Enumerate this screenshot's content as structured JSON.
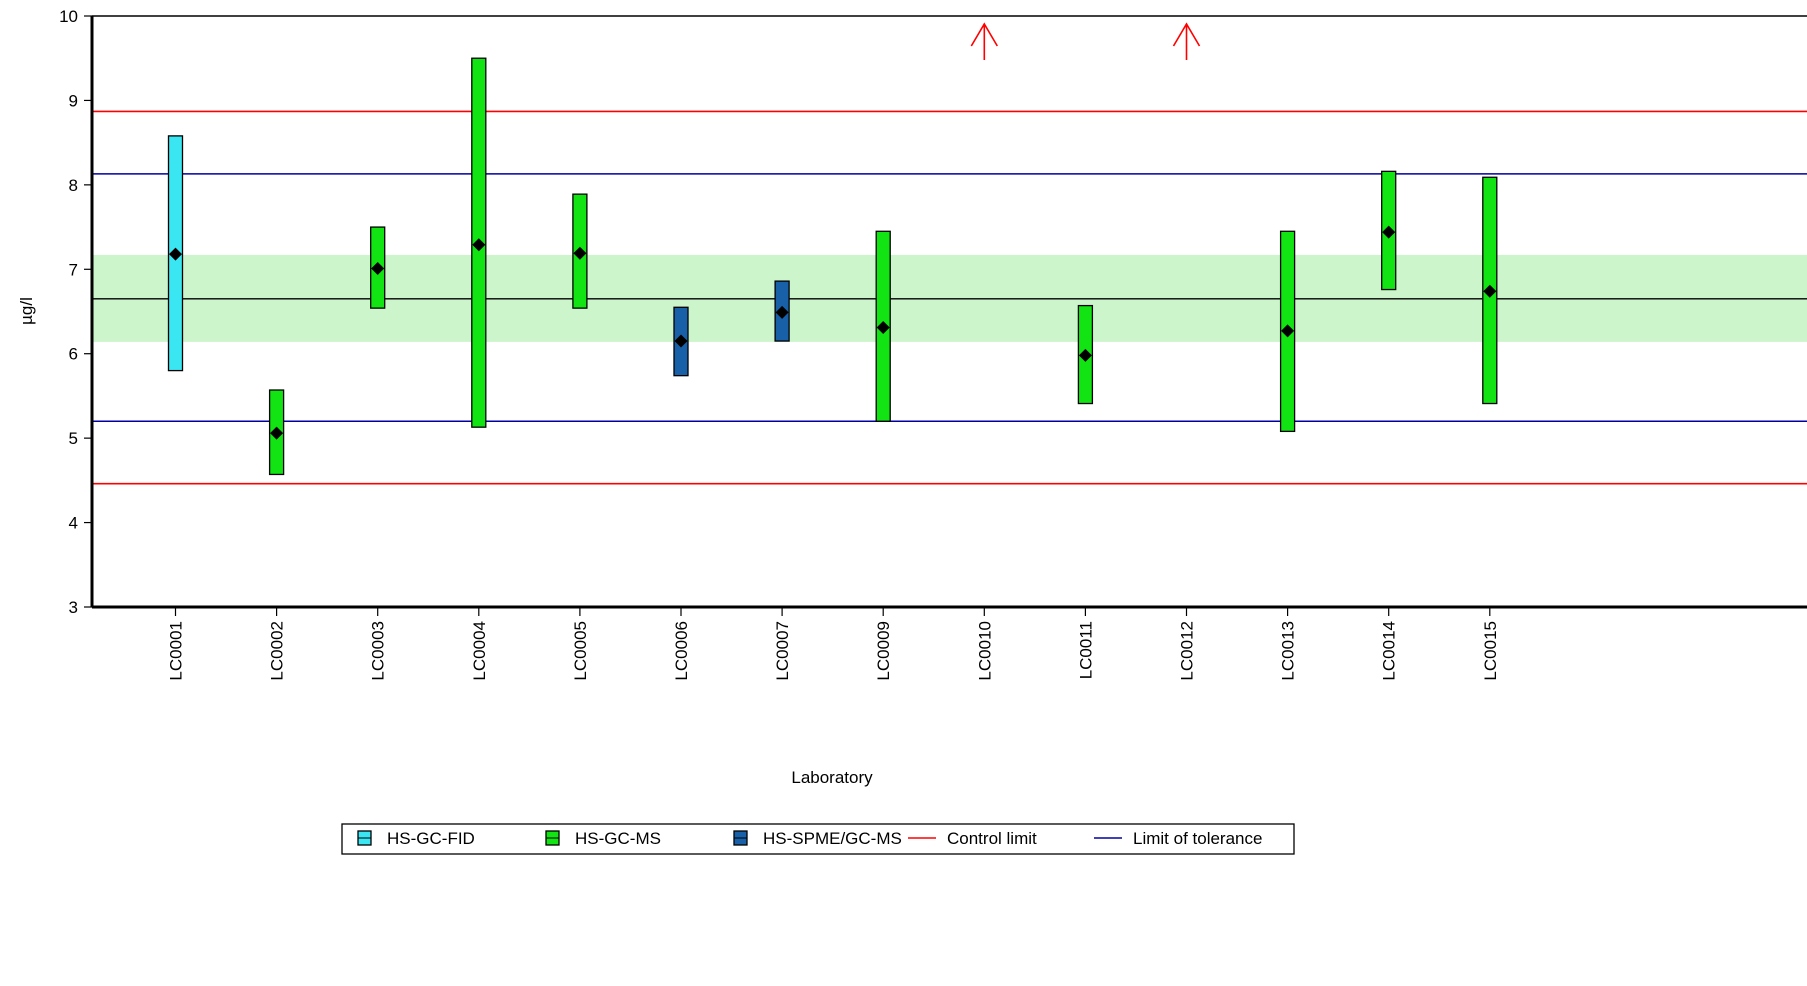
{
  "chart_data": {
    "type": "bar",
    "xlabel": "Laboratory",
    "ylabel": "µg/l",
    "ylim": [
      3,
      10
    ],
    "yticks": [
      3,
      4,
      5,
      6,
      7,
      8,
      9,
      10
    ],
    "grid": false,
    "categories": [
      "LC0001",
      "LC0002",
      "LC0003",
      "LC0004",
      "LC0005",
      "LC0006",
      "LC0007",
      "LC0009",
      "LC0010",
      "LC0011",
      "LC0012",
      "LC0013",
      "LC0014",
      "LC0015"
    ],
    "labs": [
      {
        "id": "LC0001",
        "method": "HS-GC-FID",
        "mean": 7.18,
        "low": 5.8,
        "high": 8.58
      },
      {
        "id": "LC0002",
        "method": "HS-GC-MS",
        "mean": 5.06,
        "low": 4.57,
        "high": 5.57
      },
      {
        "id": "LC0003",
        "method": "HS-GC-MS",
        "mean": 7.01,
        "low": 6.54,
        "high": 7.5
      },
      {
        "id": "LC0004",
        "method": "HS-GC-MS",
        "mean": 7.29,
        "low": 5.13,
        "high": 9.5
      },
      {
        "id": "LC0005",
        "method": "HS-GC-MS",
        "mean": 7.19,
        "low": 6.54,
        "high": 7.89
      },
      {
        "id": "LC0006",
        "method": "HS-SPME/GC-MS",
        "mean": 6.15,
        "low": 5.74,
        "high": 6.55
      },
      {
        "id": "LC0007",
        "method": "HS-SPME/GC-MS",
        "mean": 6.49,
        "low": 6.15,
        "high": 6.86
      },
      {
        "id": "LC0009",
        "method": "HS-GC-MS",
        "mean": 6.31,
        "low": 5.2,
        "high": 7.45
      },
      {
        "id": "LC0010",
        "method": "",
        "mean": null,
        "low": null,
        "high": null,
        "off_scale_high": true
      },
      {
        "id": "LC0011",
        "method": "HS-GC-MS",
        "mean": 5.98,
        "low": 5.41,
        "high": 6.57
      },
      {
        "id": "LC0012",
        "method": "",
        "mean": null,
        "low": null,
        "high": null,
        "off_scale_high": true
      },
      {
        "id": "LC0013",
        "method": "HS-GC-MS",
        "mean": 6.27,
        "low": 5.08,
        "high": 7.45
      },
      {
        "id": "LC0014",
        "method": "HS-GC-MS",
        "mean": 7.44,
        "low": 6.76,
        "high": 8.16
      },
      {
        "id": "LC0015",
        "method": "HS-GC-MS",
        "mean": 6.74,
        "low": 5.41,
        "high": 8.09
      }
    ],
    "reference": {
      "assigned": 6.65,
      "band_low": 6.14,
      "band_high": 7.17,
      "band_color": "#ccf5cc"
    },
    "control_limits": [
      4.46,
      8.87
    ],
    "tolerance_limits": [
      5.2,
      8.13
    ],
    "colors": {
      "HS-GC-FID": "#3ae6f2",
      "HS-GC-MS": "#12e312",
      "HS-SPME/GC-MS": "#1860a8",
      "control": "#ff0000",
      "tolerance": "#0000a0",
      "assigned": "#000000",
      "arrow": "#ff0000"
    },
    "legend": {
      "position": "bottom",
      "items": [
        {
          "label": "HS-GC-FID",
          "kind": "box",
          "key": "HS-GC-FID"
        },
        {
          "label": "HS-GC-MS",
          "kind": "box",
          "key": "HS-GC-MS"
        },
        {
          "label": "HS-SPME/GC-MS",
          "kind": "box",
          "key": "HS-SPME/GC-MS"
        },
        {
          "label": "Control limit",
          "kind": "line",
          "key": "control"
        },
        {
          "label": "Limit of tolerance",
          "kind": "line",
          "key": "tolerance"
        }
      ]
    }
  }
}
